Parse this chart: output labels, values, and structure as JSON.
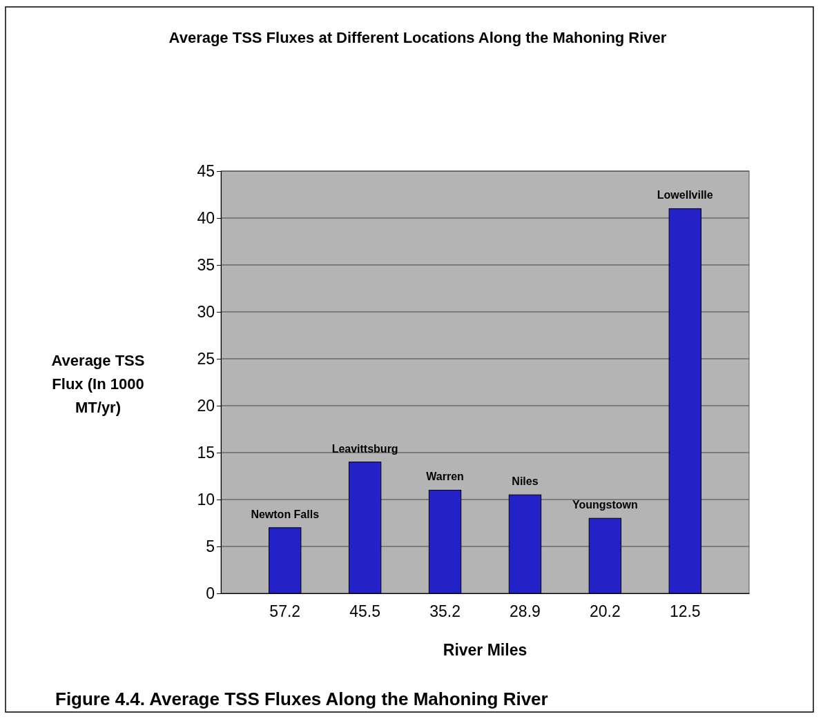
{
  "chart_data": {
    "type": "bar",
    "title": "Average TSS Fluxes at Different Locations Along the Mahoning River",
    "xlabel": "River Miles",
    "ylabel": "Average TSS Flux (In 1000 MT/yr)",
    "categories": [
      "57.2",
      "45.5",
      "35.2",
      "28.9",
      "20.2",
      "12.5"
    ],
    "values": [
      7,
      14,
      11,
      10.5,
      8,
      41
    ],
    "color": "#2222c8",
    "ylim": [
      0,
      45
    ],
    "yticks": [
      0,
      5,
      10,
      15,
      20,
      25,
      30,
      35,
      40,
      45
    ],
    "grid": "y",
    "annotations": [
      {
        "text": "Newton Falls",
        "x": "57.2",
        "y": 7
      },
      {
        "text": "Leavittsburg",
        "x": "45.5",
        "y": 14
      },
      {
        "text": "Warren",
        "x": "35.2",
        "y": 11
      },
      {
        "text": "Niles",
        "x": "28.9",
        "y": 10.5
      },
      {
        "text": "Youngstown",
        "x": "20.2",
        "y": 8
      },
      {
        "text": "Lowellville",
        "x": "12.5",
        "y": 41
      },
      "Figure 4.4.  Average TSS Fluxes Along the Mahoning River"
    ]
  }
}
